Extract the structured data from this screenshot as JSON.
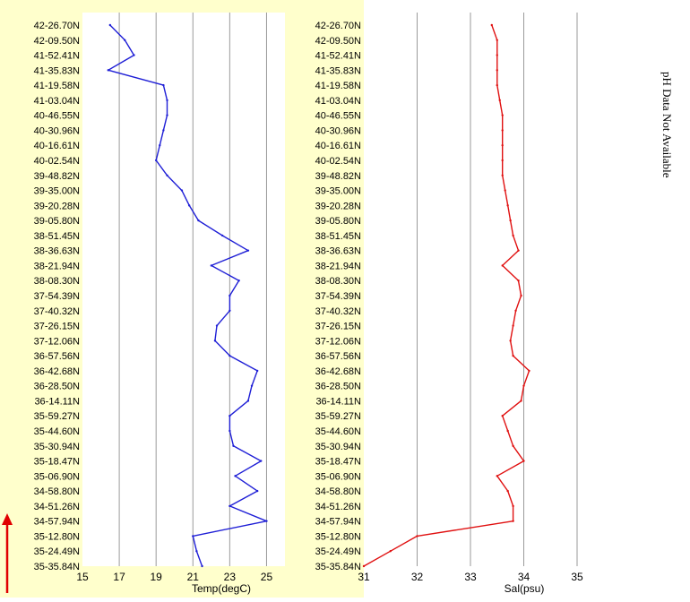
{
  "side_note": "pH Data Not Available",
  "direction_arrow_icon": "up-arrow-icon",
  "colors": {
    "panel_bg": "#ffffcc",
    "temp_line": "#1f1fd6",
    "sal_line": "#e01010",
    "grid": "#9a9a9a",
    "arrow": "#e00000"
  },
  "chart_data": [
    {
      "type": "line",
      "xlabel": "Temp(degC)",
      "ylabel": "",
      "title": "",
      "xlim": [
        15,
        26
      ],
      "xticks": [
        15,
        17,
        19,
        21,
        23,
        25
      ],
      "grid": true,
      "categories": [
        "42-26.70N",
        "42-09.50N",
        "41-52.41N",
        "41-35.83N",
        "41-19.58N",
        "41-03.04N",
        "40-46.55N",
        "40-30.96N",
        "40-16.61N",
        "40-02.54N",
        "39-48.82N",
        "39-35.00N",
        "39-20.28N",
        "39-05.80N",
        "38-51.45N",
        "38-36.63N",
        "38-21.94N",
        "38-08.30N",
        "37-54.39N",
        "37-40.32N",
        "37-26.15N",
        "37-12.06N",
        "36-57.56N",
        "36-42.68N",
        "36-28.50N",
        "36-14.11N",
        "35-59.27N",
        "35-44.60N",
        "35-30.94N",
        "35-18.47N",
        "35-06.90N",
        "34-58.80N",
        "34-51.26N",
        "34-57.94N",
        "35-12.80N",
        "35-24.49N",
        "35-35.84N"
      ],
      "series": [
        {
          "values": [
            16.5,
            17.3,
            17.8,
            16.4,
            19.4,
            19.6,
            19.6,
            19.4,
            19.2,
            19.0,
            19.6,
            20.4,
            20.8,
            21.3,
            22.6,
            24.0,
            22.0,
            23.5,
            23.0,
            23.0,
            22.3,
            22.2,
            23.0,
            24.5,
            24.2,
            24.0,
            23.0,
            23.0,
            23.2,
            24.7,
            23.3,
            24.5,
            23.0,
            25.0,
            21.0,
            21.2,
            21.5
          ]
        }
      ]
    },
    {
      "type": "line",
      "xlabel": "Sal(psu)",
      "ylabel": "",
      "title": "",
      "xlim": [
        31,
        35
      ],
      "xticks": [
        31,
        32,
        33,
        34,
        35
      ],
      "grid": true,
      "categories": [
        "42-26.70N",
        "42-09.50N",
        "41-52.41N",
        "41-35.83N",
        "41-19.58N",
        "41-03.04N",
        "40-46.55N",
        "40-30.96N",
        "40-16.61N",
        "40-02.54N",
        "39-48.82N",
        "39-35.00N",
        "39-20.28N",
        "39-05.80N",
        "38-51.45N",
        "38-36.63N",
        "38-21.94N",
        "38-08.30N",
        "37-54.39N",
        "37-40.32N",
        "37-26.15N",
        "37-12.06N",
        "36-57.56N",
        "36-42.68N",
        "36-28.50N",
        "36-14.11N",
        "35-59.27N",
        "35-44.60N",
        "35-30.94N",
        "35-18.47N",
        "35-06.90N",
        "34-58.80N",
        "34-51.26N",
        "34-57.94N",
        "35-12.80N",
        "35-24.49N",
        "35-35.84N"
      ],
      "series": [
        {
          "values": [
            33.4,
            33.5,
            33.5,
            33.5,
            33.5,
            33.55,
            33.6,
            33.6,
            33.6,
            33.6,
            33.6,
            33.65,
            33.7,
            33.75,
            33.8,
            33.9,
            33.6,
            33.9,
            33.95,
            33.85,
            33.8,
            33.75,
            33.8,
            34.1,
            34.0,
            33.95,
            33.6,
            33.7,
            33.8,
            34.0,
            33.5,
            33.7,
            33.8,
            33.8,
            32.0,
            31.5,
            31.0
          ]
        }
      ]
    }
  ]
}
